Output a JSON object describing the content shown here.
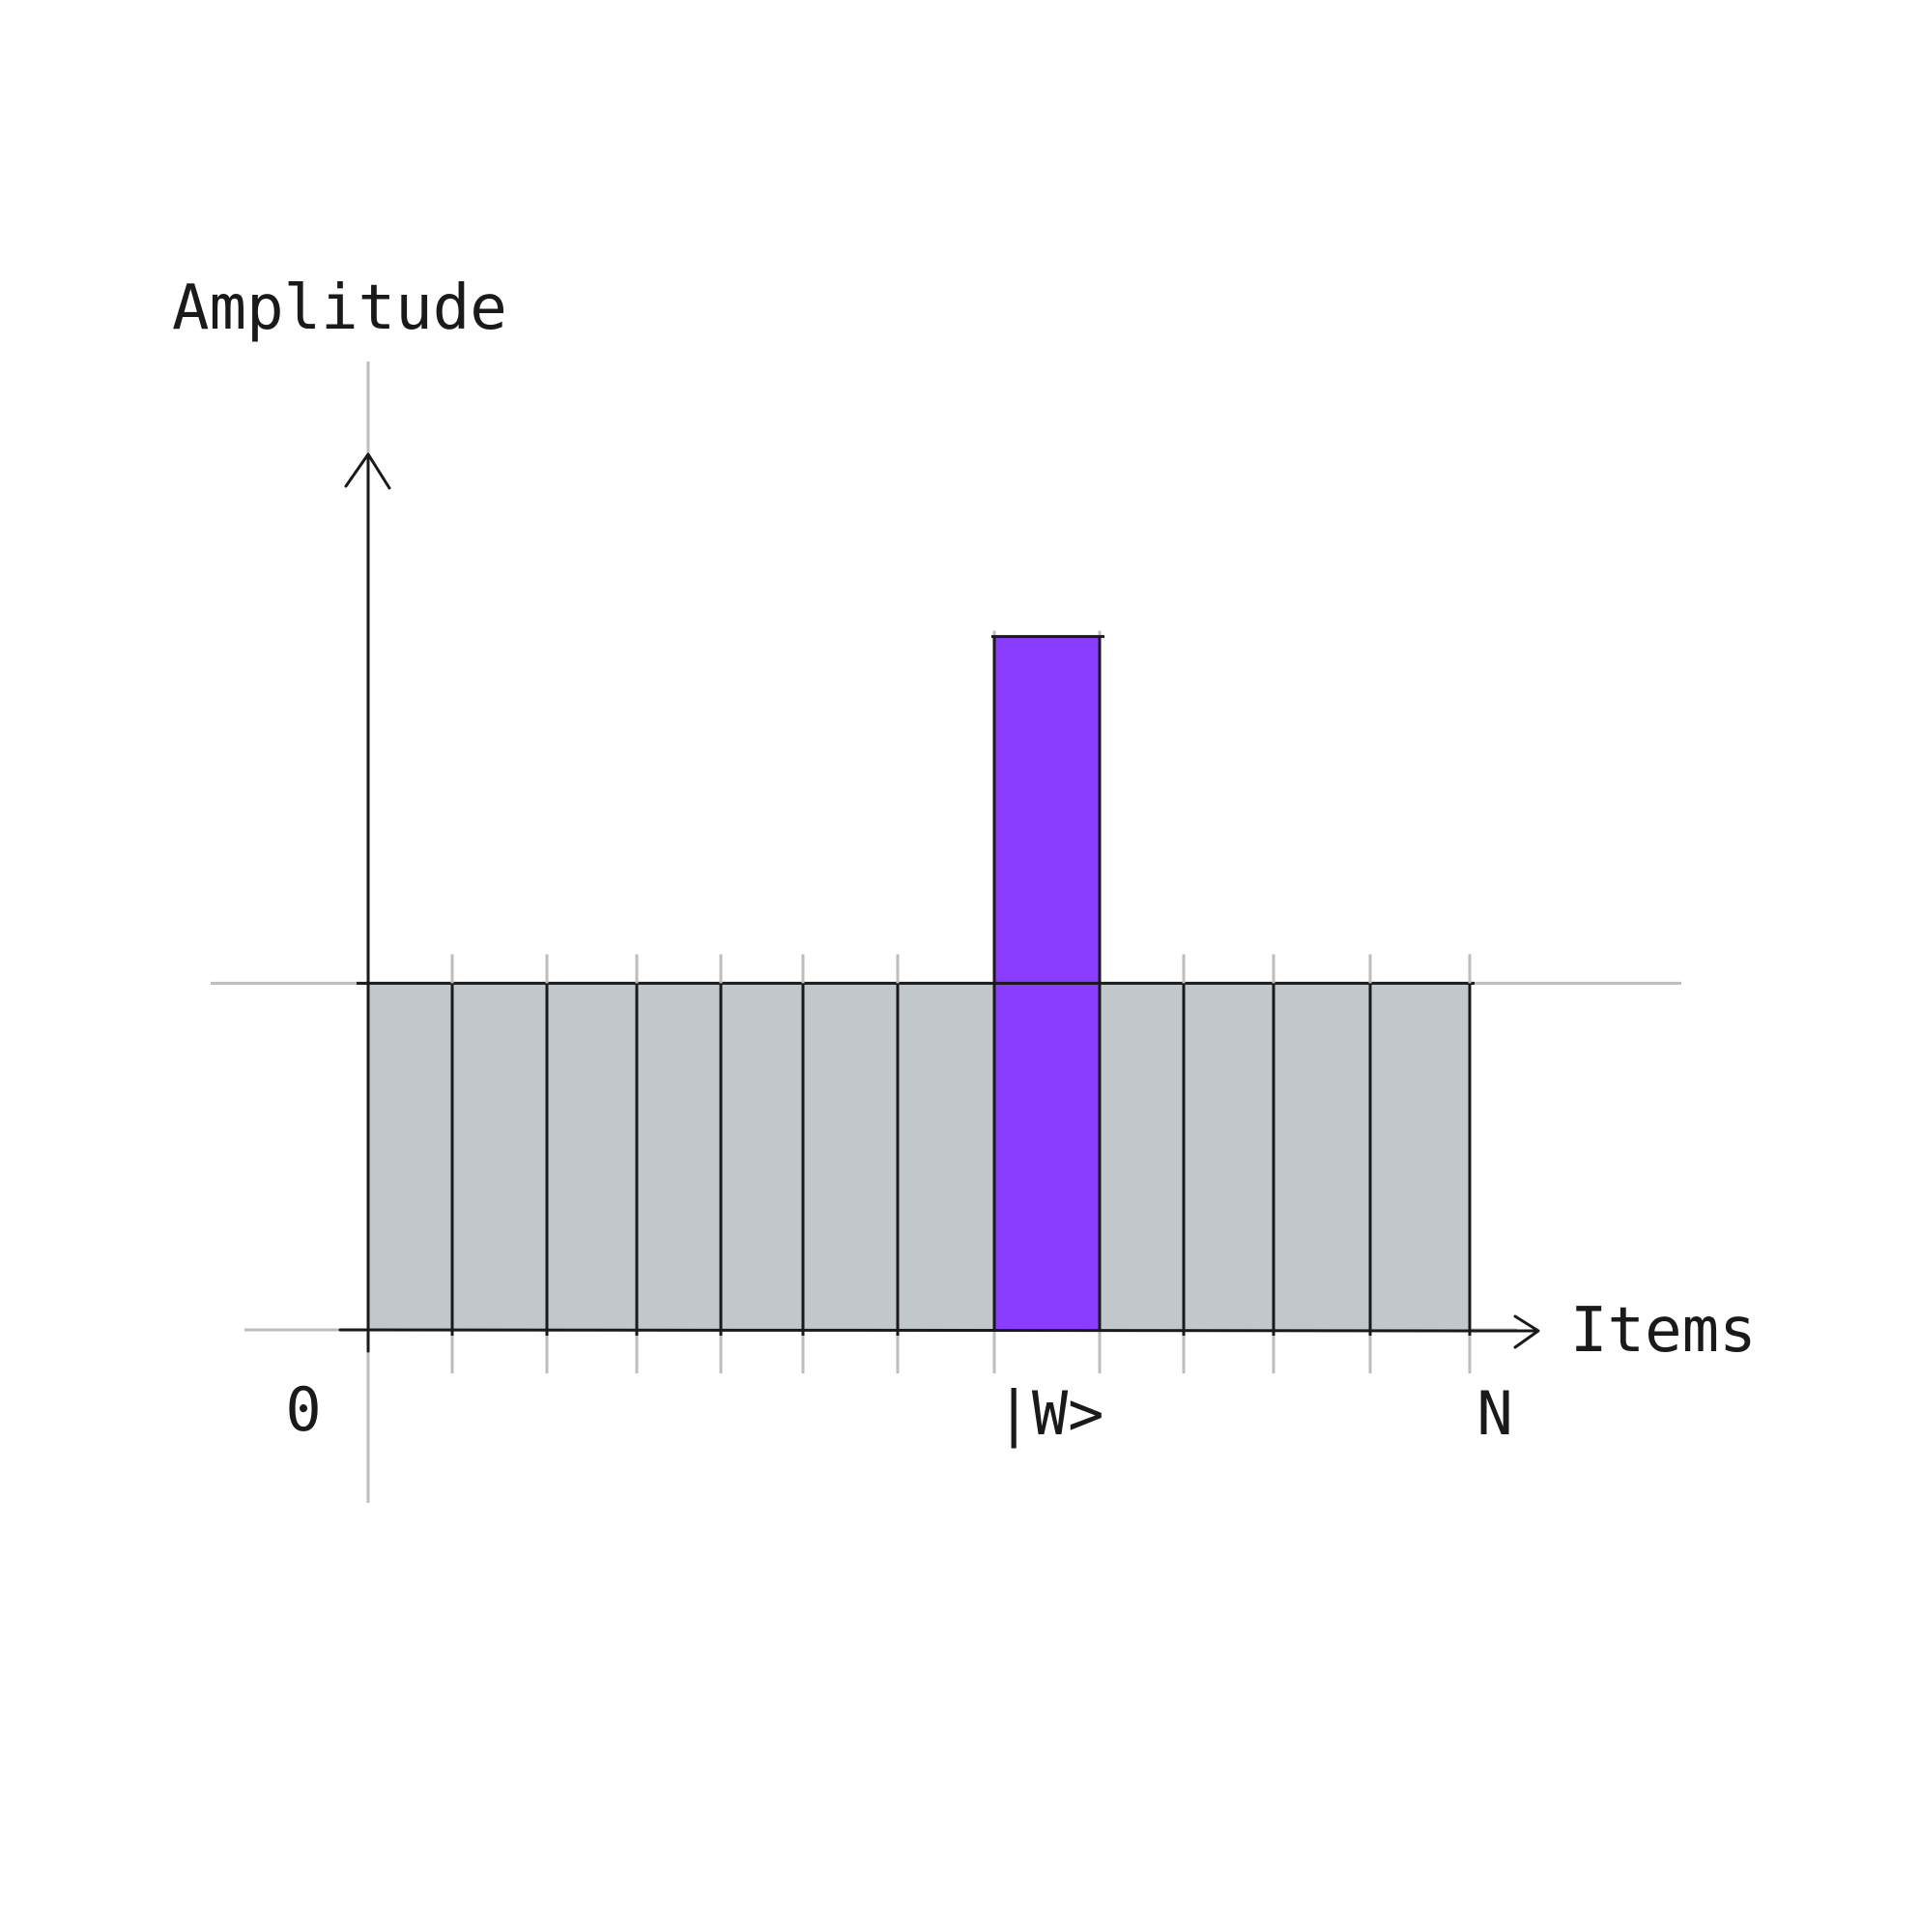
{
  "chart_data": {
    "type": "bar",
    "title": "",
    "ylabel": "Amplitude",
    "xlabel": "Items",
    "tick_labels": [
      "0",
      "|W>",
      "N"
    ],
    "bar_count": 13,
    "highlighted_index": 7,
    "values": [
      1,
      1,
      1,
      1,
      1,
      1,
      1,
      2,
      1,
      1,
      1,
      1,
      1
    ],
    "ylim": [
      0,
      3
    ],
    "grid": false,
    "colors": {
      "bar_fill": "#c2c7cc",
      "highlight_fill": "#8a3cff",
      "outline": "#1a1a1a",
      "guide": "#bdbdbd",
      "background": "#ffffff"
    }
  }
}
